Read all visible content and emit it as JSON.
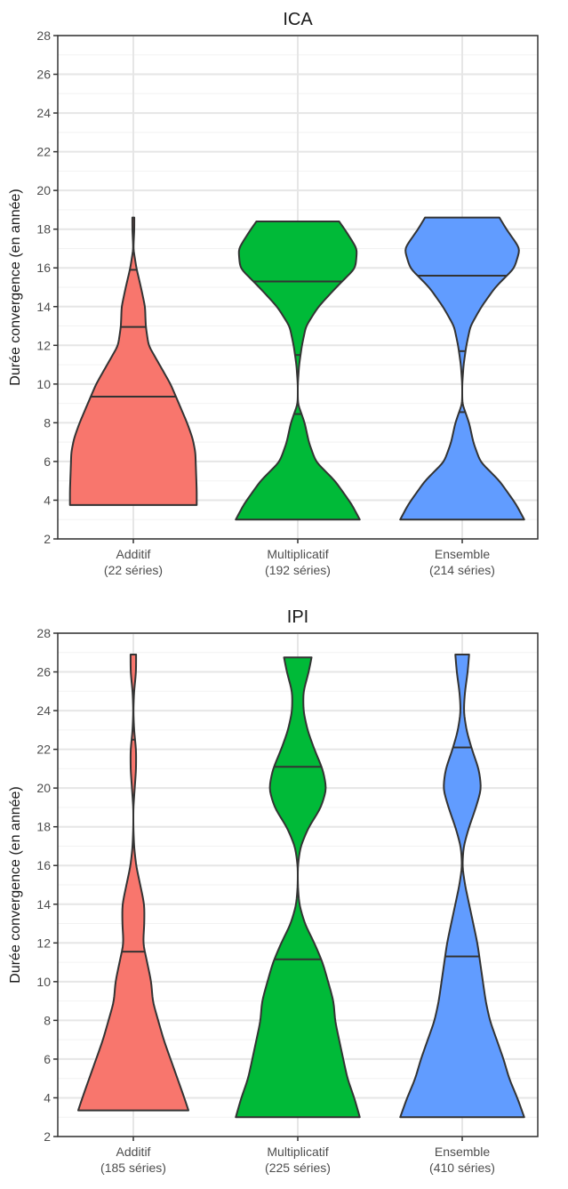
{
  "chart_data": [
    {
      "type": "violin",
      "title": "ICA",
      "ylabel": "Durée convergence (en année)",
      "xlabel": "",
      "ylim": [
        2,
        28
      ],
      "yticks": [
        2,
        4,
        6,
        8,
        10,
        12,
        14,
        16,
        18,
        20,
        22,
        24,
        26,
        28
      ],
      "grid": true,
      "legend": "none",
      "categories": [
        {
          "label": "Additif",
          "sublabel": "(22 séries)",
          "color": "#F8766D",
          "quantiles": [
            9.35,
            12.95,
            15.9
          ],
          "density": [
            [
              3.75,
              0.46
            ],
            [
              4.5,
              0.46
            ],
            [
              5.5,
              0.455
            ],
            [
              6.5,
              0.45
            ],
            [
              7.2,
              0.43
            ],
            [
              8.0,
              0.39
            ],
            [
              9.0,
              0.33
            ],
            [
              10.0,
              0.27
            ],
            [
              11.0,
              0.19
            ],
            [
              12.0,
              0.11
            ],
            [
              13.0,
              0.09
            ],
            [
              14.0,
              0.085
            ],
            [
              15.0,
              0.055
            ],
            [
              16.0,
              0.022
            ],
            [
              17.0,
              0.0
            ],
            [
              18.0,
              0.007
            ],
            [
              18.6,
              0.007
            ]
          ]
        },
        {
          "label": "Multiplicatif",
          "sublabel": "(192 séries)",
          "color": "#00BA38",
          "quantiles": [
            8.45,
            11.5,
            15.3
          ],
          "density": [
            [
              3.0,
              0.45
            ],
            [
              3.8,
              0.39
            ],
            [
              5.0,
              0.27
            ],
            [
              6.0,
              0.13
            ],
            [
              7.0,
              0.08
            ],
            [
              8.0,
              0.05
            ],
            [
              9.0,
              0.0
            ],
            [
              10.0,
              0.0
            ],
            [
              11.0,
              0.01
            ],
            [
              12.0,
              0.03
            ],
            [
              13.0,
              0.06
            ],
            [
              14.0,
              0.15
            ],
            [
              15.0,
              0.28
            ],
            [
              16.0,
              0.42
            ],
            [
              17.0,
              0.43
            ],
            [
              18.0,
              0.34
            ],
            [
              18.4,
              0.3
            ]
          ]
        },
        {
          "label": "Ensemble",
          "sublabel": "(214 séries)",
          "color": "#619CFF",
          "quantiles": [
            8.55,
            11.7,
            15.6
          ],
          "density": [
            [
              3.0,
              0.45
            ],
            [
              3.8,
              0.39
            ],
            [
              5.0,
              0.27
            ],
            [
              6.0,
              0.13
            ],
            [
              7.0,
              0.08
            ],
            [
              8.0,
              0.05
            ],
            [
              9.0,
              0.0
            ],
            [
              10.0,
              0.0
            ],
            [
              11.0,
              0.01
            ],
            [
              12.0,
              0.03
            ],
            [
              13.0,
              0.06
            ],
            [
              14.0,
              0.14
            ],
            [
              15.0,
              0.24
            ],
            [
              16.0,
              0.38
            ],
            [
              17.0,
              0.42
            ],
            [
              18.0,
              0.32
            ],
            [
              18.6,
              0.27
            ]
          ]
        }
      ]
    },
    {
      "type": "violin",
      "title": "IPI",
      "ylabel": "Durée convergence (en année)",
      "xlabel": "",
      "ylim": [
        2,
        28
      ],
      "yticks": [
        2,
        4,
        6,
        8,
        10,
        12,
        14,
        16,
        18,
        20,
        22,
        24,
        26,
        28
      ],
      "grid": true,
      "legend": "none",
      "categories": [
        {
          "label": "Additif",
          "sublabel": "(185 séries)",
          "color": "#F8766D",
          "quantiles": [
            11.55,
            17.3,
            22.5
          ],
          "density": [
            [
              3.35,
              0.4
            ],
            [
              4.0,
              0.37
            ],
            [
              5.0,
              0.32
            ],
            [
              6.0,
              0.27
            ],
            [
              7.0,
              0.22
            ],
            [
              8.0,
              0.18
            ],
            [
              9.0,
              0.14
            ],
            [
              10.0,
              0.13
            ],
            [
              11.0,
              0.1
            ],
            [
              12.0,
              0.07
            ],
            [
              13.0,
              0.08
            ],
            [
              14.0,
              0.08
            ],
            [
              15.0,
              0.05
            ],
            [
              16.0,
              0.02
            ],
            [
              17.0,
              0.005
            ],
            [
              18.0,
              0.0
            ],
            [
              19.0,
              0.0
            ],
            [
              20.0,
              0.01
            ],
            [
              21.0,
              0.02
            ],
            [
              22.0,
              0.02
            ],
            [
              23.0,
              0.005
            ],
            [
              24.0,
              0.0
            ],
            [
              25.0,
              0.005
            ],
            [
              26.0,
              0.02
            ],
            [
              26.9,
              0.02
            ]
          ]
        },
        {
          "label": "Multiplicatif",
          "sublabel": "(225 séries)",
          "color": "#00BA38",
          "quantiles": [
            11.15,
            16.0,
            21.1
          ],
          "density": [
            [
              3.0,
              0.45
            ],
            [
              4.0,
              0.41
            ],
            [
              5.0,
              0.36
            ],
            [
              6.0,
              0.33
            ],
            [
              7.0,
              0.3
            ],
            [
              8.0,
              0.27
            ],
            [
              9.0,
              0.26
            ],
            [
              10.0,
              0.22
            ],
            [
              11.0,
              0.18
            ],
            [
              12.0,
              0.12
            ],
            [
              13.0,
              0.05
            ],
            [
              14.0,
              0.01
            ],
            [
              15.0,
              0.0
            ],
            [
              16.0,
              0.0
            ],
            [
              17.0,
              0.02
            ],
            [
              18.0,
              0.08
            ],
            [
              19.0,
              0.17
            ],
            [
              20.0,
              0.21
            ],
            [
              21.0,
              0.18
            ],
            [
              22.0,
              0.12
            ],
            [
              23.0,
              0.07
            ],
            [
              24.0,
              0.04
            ],
            [
              25.0,
              0.04
            ],
            [
              26.0,
              0.08
            ],
            [
              26.75,
              0.1
            ]
          ]
        },
        {
          "label": "Ensemble",
          "sublabel": "(410 séries)",
          "color": "#619CFF",
          "quantiles": [
            11.3,
            16.55,
            22.1
          ],
          "density": [
            [
              3.0,
              0.45
            ],
            [
              4.0,
              0.4
            ],
            [
              5.0,
              0.34
            ],
            [
              6.0,
              0.3
            ],
            [
              7.0,
              0.25
            ],
            [
              8.0,
              0.2
            ],
            [
              9.0,
              0.17
            ],
            [
              10.0,
              0.15
            ],
            [
              11.0,
              0.13
            ],
            [
              12.0,
              0.11
            ],
            [
              13.0,
              0.08
            ],
            [
              14.0,
              0.05
            ],
            [
              15.0,
              0.02
            ],
            [
              16.0,
              0.0
            ],
            [
              17.0,
              0.01
            ],
            [
              18.0,
              0.05
            ],
            [
              19.0,
              0.1
            ],
            [
              20.0,
              0.14
            ],
            [
              21.0,
              0.12
            ],
            [
              22.0,
              0.07
            ],
            [
              23.0,
              0.03
            ],
            [
              24.0,
              0.01
            ],
            [
              25.0,
              0.02
            ],
            [
              26.0,
              0.04
            ],
            [
              26.9,
              0.05
            ]
          ]
        }
      ]
    }
  ]
}
